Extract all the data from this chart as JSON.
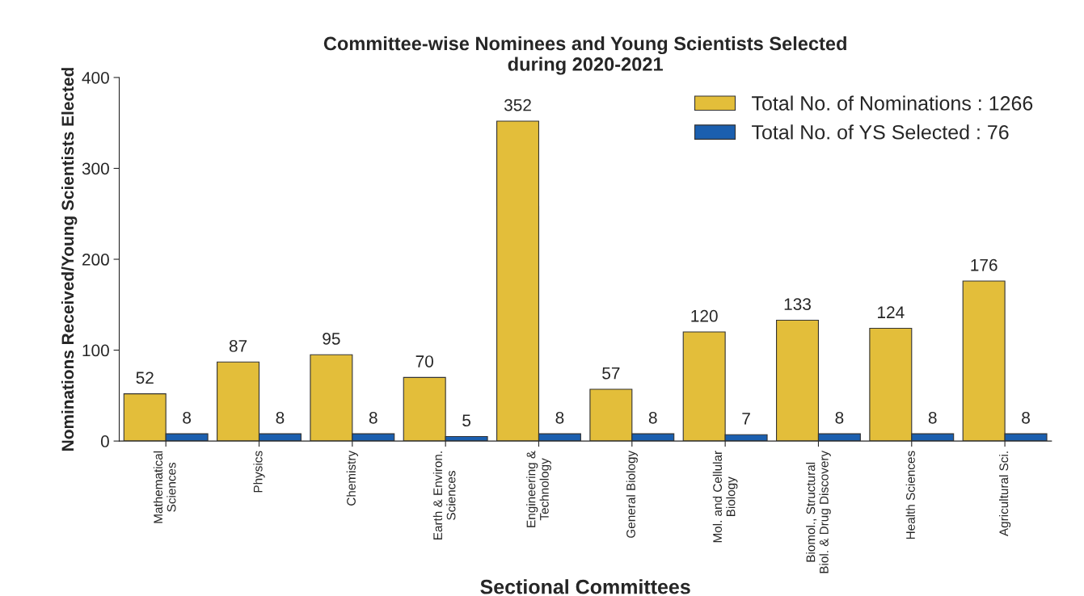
{
  "chart_data": {
    "type": "bar",
    "title": "Committee-wise Nominees and Young Scientists Selected\nduring 2020-2021",
    "xlabel": "Sectional Committees",
    "ylabel": "Nominations Received/Young Scientists Elected",
    "categories": [
      "Mathematical\nSciences",
      "Physics",
      "Chemistry",
      "Earth & Environ.\nSciences",
      "Engineering &\nTechnology",
      "General Biology",
      "Mol. and Cellular\nBiology",
      "Biomol., Structural\nBiol. & Drug Discovery",
      "Health Sciences",
      "Agricultural Sci."
    ],
    "series": [
      {
        "name": "Total No. of Nominations : 1266",
        "color": "#e3be3a",
        "values": [
          52,
          87,
          95,
          70,
          352,
          57,
          120,
          133,
          124,
          176
        ]
      },
      {
        "name": "Total No. of YS Selected : 76",
        "color": "#1b5faf",
        "values": [
          8,
          8,
          8,
          5,
          8,
          8,
          7,
          8,
          8,
          8
        ]
      }
    ],
    "ylim": [
      0,
      400
    ],
    "yticks": [
      0,
      100,
      200,
      300,
      400
    ],
    "data_labels": true,
    "grid": false,
    "legend": "top right"
  }
}
